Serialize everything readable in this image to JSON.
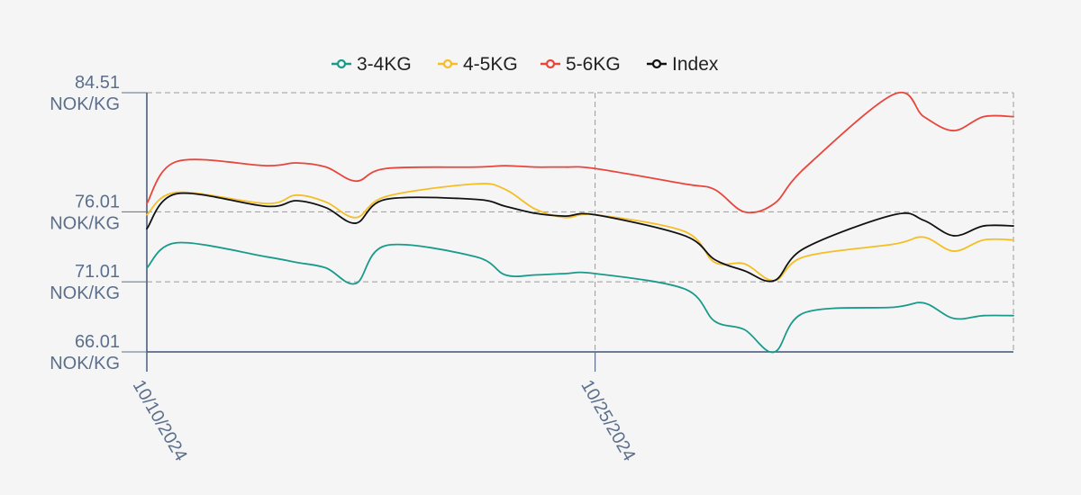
{
  "chart_data": {
    "type": "line",
    "legend_position": "top-center",
    "grid": true,
    "ylim": [
      66.01,
      84.51
    ],
    "y_ticks": [
      {
        "value": 84.51,
        "line1": "84.51",
        "line2": "NOK/KG"
      },
      {
        "value": 76.01,
        "line1": "76.01",
        "line2": "NOK/KG"
      },
      {
        "value": 71.01,
        "line1": "71.01",
        "line2": "NOK/KG"
      },
      {
        "value": 66.01,
        "line1": "66.01",
        "line2": "NOK/KG"
      }
    ],
    "x_ticks": [
      {
        "date": "2024-10-10",
        "label": "10/10/2024"
      },
      {
        "date": "2024-10-25",
        "label": "10/25/2024"
      }
    ],
    "x": [
      "2024-10-10",
      "2024-10-11",
      "2024-10-14",
      "2024-10-15",
      "2024-10-16",
      "2024-10-17",
      "2024-10-18",
      "2024-10-21",
      "2024-10-22",
      "2024-10-23",
      "2024-10-24",
      "2024-10-25",
      "2024-10-28",
      "2024-10-29",
      "2024-10-30",
      "2024-10-31",
      "2024-11-01",
      "2024-11-04",
      "2024-11-05",
      "2024-11-06",
      "2024-11-07",
      "2024-11-08"
    ],
    "series": [
      {
        "name": "3-4KG",
        "color": "#1a9a8a",
        "values": [
          72.0,
          73.8,
          72.8,
          72.4,
          72.0,
          70.9,
          73.6,
          72.8,
          71.5,
          71.5,
          71.6,
          71.6,
          70.5,
          68.2,
          67.6,
          66.0,
          68.8,
          69.2,
          69.5,
          68.4,
          68.6,
          68.6
        ]
      },
      {
        "name": "4-5KG",
        "color": "#f5be25",
        "values": [
          75.8,
          77.4,
          76.6,
          77.2,
          76.7,
          75.6,
          77.1,
          78.0,
          77.6,
          76.2,
          75.6,
          75.8,
          74.6,
          72.4,
          72.3,
          71.1,
          72.8,
          73.7,
          74.2,
          73.2,
          74.0,
          74.0
        ]
      },
      {
        "name": "5-6KG",
        "color": "#e8453c",
        "values": [
          76.6,
          79.6,
          79.3,
          79.5,
          79.2,
          78.2,
          79.1,
          79.2,
          79.3,
          79.2,
          79.2,
          79.1,
          78.0,
          77.6,
          76.0,
          76.6,
          79.1,
          84.4,
          82.8,
          81.8,
          82.8,
          82.8
        ]
      },
      {
        "name": "Index",
        "color": "#111111",
        "values": [
          74.8,
          77.3,
          76.4,
          76.8,
          76.3,
          75.2,
          76.9,
          76.9,
          76.4,
          75.9,
          75.7,
          75.8,
          74.3,
          72.6,
          71.8,
          71.1,
          73.4,
          75.8,
          75.4,
          74.3,
          75.0,
          75.0
        ]
      }
    ]
  }
}
